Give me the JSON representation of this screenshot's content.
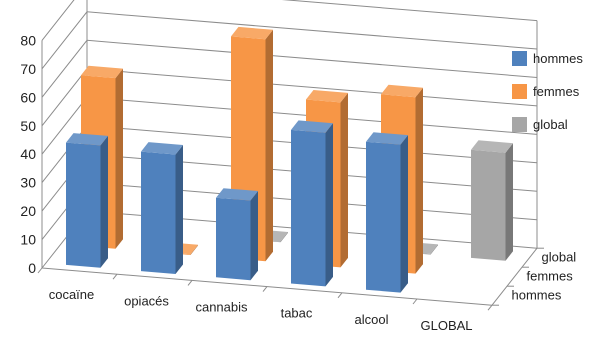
{
  "chart_data": {
    "type": "bar",
    "title": "",
    "xlabel": "",
    "ylabel": "",
    "ylim": [
      0,
      80
    ],
    "y_ticks": [
      "0",
      "10",
      "20",
      "30",
      "40",
      "50",
      "60",
      "70",
      "80"
    ],
    "categories": [
      "cocaïne",
      "opiacés",
      "cannabis",
      "tabac",
      "alcool",
      "GLOBAL"
    ],
    "depth_labels": [
      "global",
      "femmes",
      "hommes"
    ],
    "grid": true,
    "legend_position": "right",
    "series": [
      {
        "name": "hommes",
        "color": "#4f81bd",
        "values": [
          43,
          42,
          28,
          54,
          52,
          null
        ]
      },
      {
        "name": "femmes",
        "color": "#f79646",
        "values": [
          60,
          0,
          78,
          58,
          62,
          null
        ]
      },
      {
        "name": "global",
        "color": "#a6a6a6",
        "values": [
          null,
          null,
          0,
          null,
          0,
          38
        ]
      }
    ]
  }
}
